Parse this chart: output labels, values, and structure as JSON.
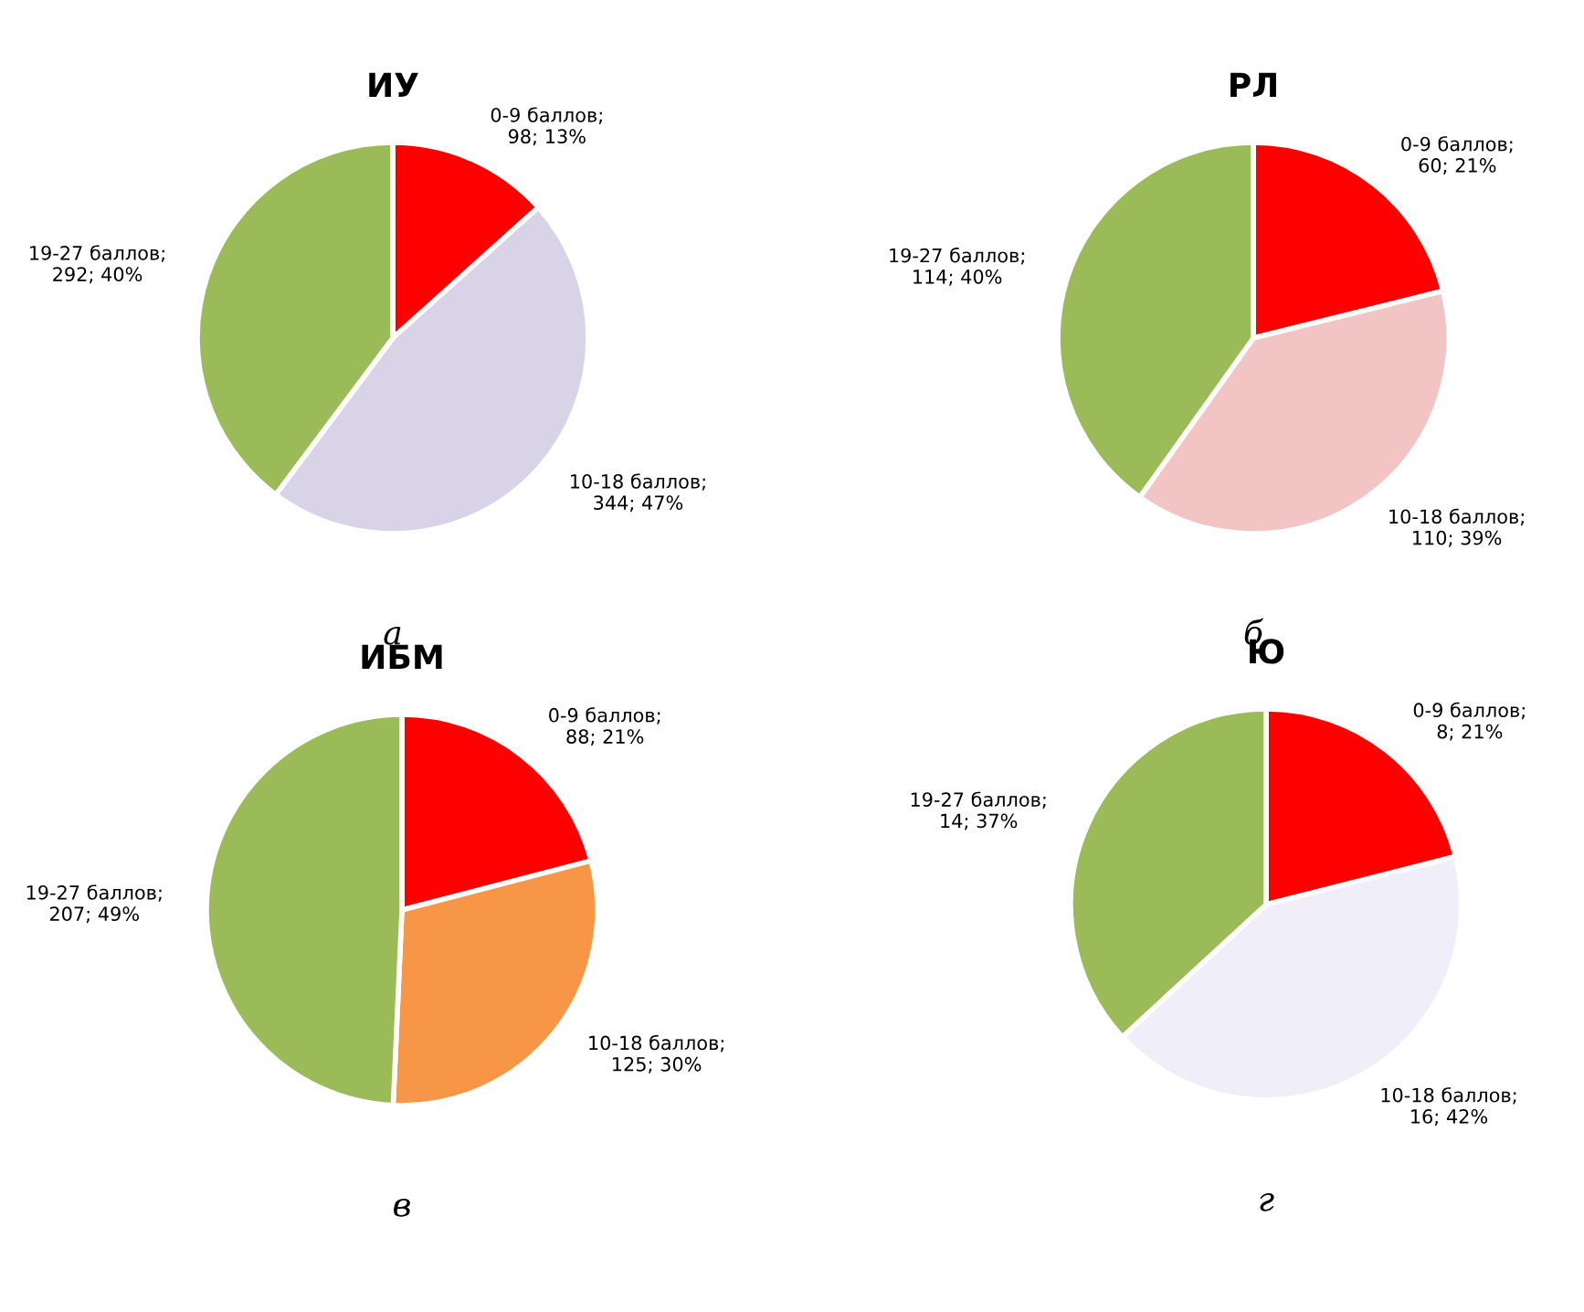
{
  "chart_data": [
    {
      "type": "pie",
      "title": "ИУ",
      "categories": [
        "0-9 баллов",
        "10-18 баллов",
        "19-27 баллов"
      ],
      "values": [
        98,
        344,
        292
      ],
      "colors": [
        "#ff0000",
        "#d9d3e8",
        "#9bbb59"
      ],
      "value_labels": [
        "; 98; 13%",
        "; 344; 47%",
        "; 292; 40%"
      ],
      "annotations": [
        "а"
      ]
    },
    {
      "type": "pie",
      "title": "РЛ",
      "categories": [
        "0-9 баллов",
        "10-18 баллов",
        "19-27 баллов"
      ],
      "values": [
        60,
        110,
        114
      ],
      "colors": [
        "#ff0000",
        "#f2c4c4",
        "#9bbb59"
      ],
      "value_labels": [
        "; 60; 21%",
        "; 110; 39%",
        "; 114; 40%"
      ],
      "annotations": [
        "б"
      ]
    },
    {
      "type": "pie",
      "title": "ИБМ",
      "categories": [
        "0-9 баллов",
        "10-18 баллов",
        "19-27 баллов"
      ],
      "values": [
        88,
        125,
        207
      ],
      "colors": [
        "#ff0000",
        "#f79646",
        "#9bbb59"
      ],
      "value_labels": [
        "; 88; 21%",
        "; 125; 30%",
        "; 207; 49%"
      ],
      "annotations": [
        "в"
      ]
    },
    {
      "type": "pie",
      "title": "Ю",
      "categories": [
        "0-9 баллов",
        "10-18 баллов",
        "19-27 баллов"
      ],
      "values": [
        8,
        16,
        14
      ],
      "colors": [
        "#ff0000",
        "#f0eef8",
        "#9bbb59"
      ],
      "value_labels": [
        "; 8; 21%",
        "; 16; 42%",
        "; 14; 37%"
      ],
      "annotations": [
        "г"
      ]
    }
  ]
}
